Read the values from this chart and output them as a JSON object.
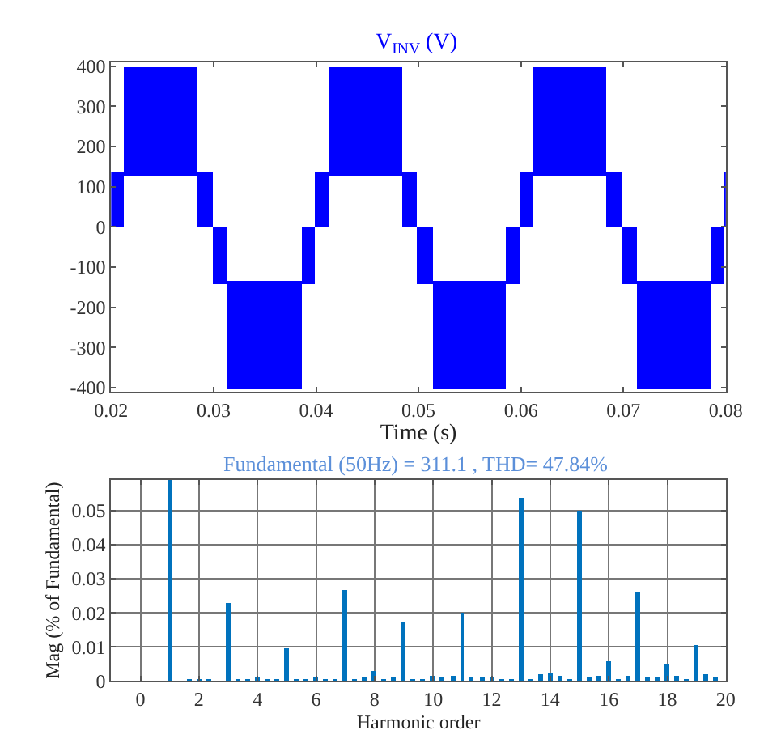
{
  "chart_data": [
    {
      "type": "bar",
      "title": "V$_{INV}$ (V)",
      "xlabel": "Time (s)",
      "x": [
        0.02065,
        0.02485,
        0.02915,
        0.03065,
        0.035,
        0.03925,
        0.0406,
        0.04485,
        0.04915,
        0.05065,
        0.055,
        0.05925,
        0.0606,
        0.06485,
        0.06915,
        0.07065,
        0.075,
        0.07925,
        0.07995
      ],
      "series": [
        {
          "color": "#0000ff",
          "values": [
            135,
            268,
            135,
            140,
            270,
            140,
            135,
            268,
            135,
            140,
            270,
            140,
            135,
            268,
            135,
            140,
            270,
            140,
            135
          ],
          "base": [
            0,
            130,
            0,
            -140,
            -405,
            -140,
            0,
            130,
            0,
            -140,
            -405,
            -140,
            0,
            130,
            0,
            -140,
            -405,
            -140,
            0
          ]
        }
      ],
      "xlim": [
        0.02,
        0.08
      ],
      "xticks": [
        0.02,
        0.03,
        0.04,
        0.05,
        0.06,
        0.07,
        0.08
      ],
      "ylim": [
        -410,
        410
      ],
      "yticks": [
        -400,
        -300,
        -200,
        -100,
        0,
        100,
        200,
        300,
        400
      ],
      "grid": false
    },
    {
      "type": "bar",
      "title": "Fundamental (50Hz) = 311.1 , THD= 47.84%",
      "xlabel": "Harmonic order",
      "ylabel": "Mag (% of Fundamental)",
      "x": [
        0,
        0.33,
        0.67,
        1,
        1.33,
        1.67,
        2,
        2.33,
        2.67,
        3,
        3.33,
        3.67,
        4,
        4.33,
        4.67,
        5,
        5.33,
        5.67,
        6,
        6.33,
        6.67,
        7,
        7.33,
        7.67,
        8,
        8.33,
        8.67,
        9,
        9.33,
        9.67,
        10,
        10.33,
        10.67,
        11,
        11.33,
        11.67,
        12,
        12.33,
        12.67,
        13,
        13.33,
        13.67,
        14,
        14.33,
        14.67,
        15,
        15.33,
        15.67,
        16,
        16.33,
        16.67,
        17,
        17.33,
        17.67,
        18,
        18.33,
        18.67,
        19,
        19.33,
        19.67
      ],
      "series": [
        {
          "color": "#0072bd",
          "values": [
            0,
            0,
            0,
            0.059,
            0,
            0.0003,
            0.0004,
            0.0002,
            0,
            0.0228,
            0.0002,
            0.0002,
            0.0013,
            0.0003,
            0.0004,
            0.0096,
            0.0003,
            0.0003,
            0.0012,
            0.0005,
            0.0002,
            0.0265,
            0.0003,
            0.001,
            0.0028,
            0.0006,
            0.0009,
            0.0171,
            0.0005,
            0.0008,
            0.0015,
            0.001,
            0.0017,
            0.0199,
            0.0013,
            0.001,
            0.0012,
            0.0008,
            0.0007,
            0.0537,
            0.0005,
            0.0018,
            0.0023,
            0.0016,
            0.0006,
            0.0502,
            0.0012,
            0.0015,
            0.0056,
            0.0007,
            0.0017,
            0.0261,
            0.0011,
            0.0009,
            0.0047,
            0.0016,
            0.0005,
            0.0105,
            0.0019,
            0.0011
          ]
        }
      ],
      "xlim": [
        -1,
        20
      ],
      "xticks": [
        0,
        2,
        4,
        6,
        8,
        10,
        12,
        14,
        16,
        18,
        20
      ],
      "ylim": [
        0,
        0.059
      ],
      "yticks": [
        0,
        0.01,
        0.02,
        0.03,
        0.04,
        0.05
      ],
      "grid": true
    }
  ]
}
